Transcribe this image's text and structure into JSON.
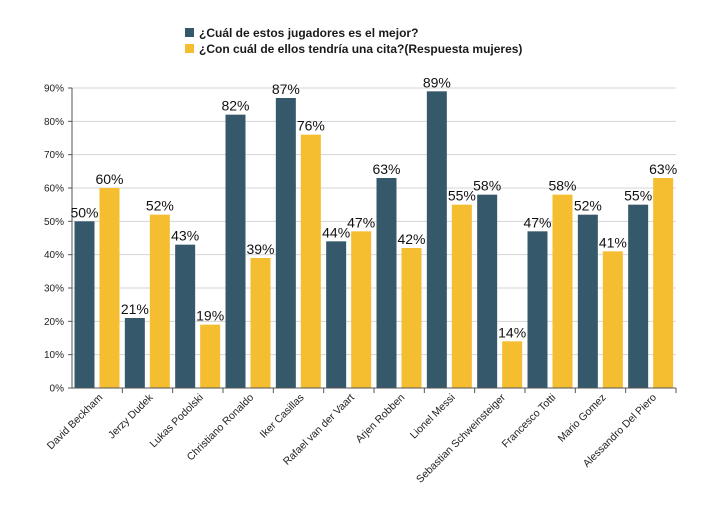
{
  "chart_data": {
    "type": "bar",
    "title": "",
    "xlabel": "",
    "ylabel": "",
    "ylim": [
      0,
      90
    ],
    "yticks": [
      "0%",
      "10%",
      "20%",
      "30%",
      "40%",
      "50%",
      "60%",
      "70%",
      "80%",
      "90%"
    ],
    "grid": "horizontal",
    "legend_position": "top",
    "categories": [
      "David Beckham",
      "Jerzy Dudek",
      "Lukas Podolski",
      "Christiano Ronaldo",
      "Iker Casillas",
      "Rafael van der Vaart",
      "Arjen Robben",
      "Lionel Messi",
      "Sebastian Schweinsteiger",
      "Francesco Totti",
      "Mario Gomez",
      "Alessandro Del Piero"
    ],
    "series": [
      {
        "name": "¿Cuál de estos jugadores  es el mejor?",
        "color": "#36586b",
        "values": [
          50,
          21,
          43,
          82,
          87,
          44,
          63,
          89,
          58,
          47,
          52,
          55
        ],
        "labels": [
          "50%",
          "21%",
          "43%",
          "82%",
          "87%",
          "44%",
          "63%",
          "89%",
          "58%",
          "47%",
          "52%",
          "55%"
        ]
      },
      {
        "name": "¿Con cuál de ellos tendría una cita?(Respuesta  mujeres)",
        "color": "#f5be31",
        "values": [
          60,
          52,
          19,
          39,
          76,
          47,
          42,
          55,
          14,
          58,
          41,
          63
        ],
        "labels": [
          "60%",
          "52%",
          "19%",
          "39%",
          "76%",
          "47%",
          "42%",
          "55%",
          "14%",
          "58%",
          "41%",
          "63%"
        ]
      }
    ]
  }
}
